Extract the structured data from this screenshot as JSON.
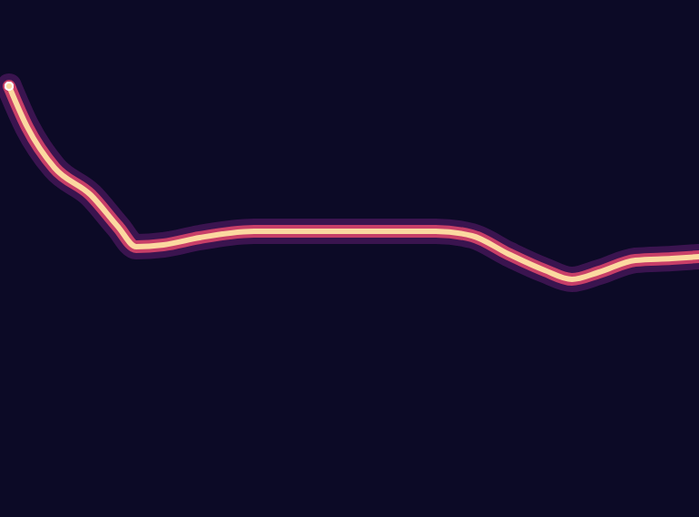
{
  "chart_data": {
    "type": "line",
    "x": [
      10,
      30,
      60,
      100,
      130,
      150,
      180,
      220,
      280,
      350,
      420,
      480,
      520,
      560,
      600,
      630,
      660,
      700,
      740,
      770
    ],
    "values": [
      475,
      430,
      385,
      355,
      320,
      298,
      300,
      308,
      315,
      315,
      315,
      315,
      310,
      290,
      272,
      262,
      270,
      283,
      285,
      287
    ],
    "color": "#fcd9a0",
    "xlim": [
      0,
      770
    ],
    "ylim": [
      0,
      570
    ],
    "grid": false,
    "tick_labels": false
  }
}
